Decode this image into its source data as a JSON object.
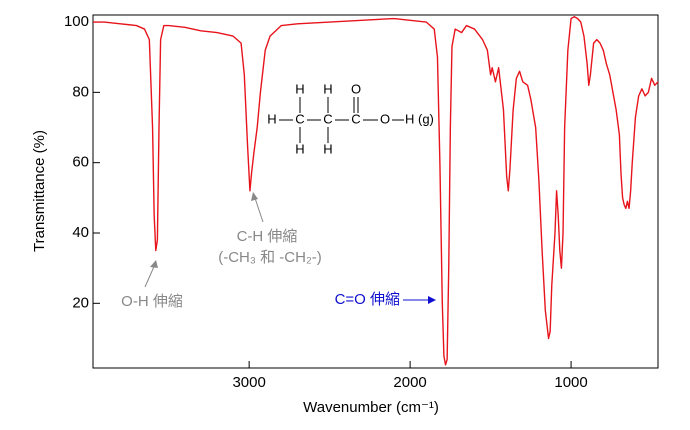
{
  "chart_data": {
    "type": "line",
    "xlabel": "Wavenumber (cm⁻¹)",
    "ylabel": "Transmittance (%)",
    "xlim": [
      3970,
      460
    ],
    "ylim": [
      1.6,
      102
    ],
    "xticks": [
      3000,
      2000,
      1000
    ],
    "yticks": [
      20,
      40,
      60,
      80,
      100
    ],
    "series": [
      {
        "color": "#e8141c",
        "x": [
          3970,
          3900,
          3800,
          3700,
          3650,
          3620,
          3600,
          3590,
          3580,
          3570,
          3560,
          3550,
          3530,
          3500,
          3400,
          3300,
          3200,
          3100,
          3050,
          3030,
          3010,
          2995,
          2985,
          2970,
          2950,
          2930,
          2900,
          2870,
          2800,
          2700,
          2500,
          2300,
          2100,
          2000,
          1900,
          1850,
          1830,
          1815,
          1800,
          1790,
          1780,
          1770,
          1760,
          1750,
          1740,
          1720,
          1680,
          1650,
          1600,
          1550,
          1520,
          1500,
          1490,
          1470,
          1450,
          1420,
          1400,
          1390,
          1380,
          1360,
          1340,
          1320,
          1300,
          1270,
          1250,
          1220,
          1200,
          1180,
          1160,
          1140,
          1130,
          1120,
          1100,
          1090,
          1080,
          1070,
          1060,
          1050,
          1040,
          1020,
          1000,
          980,
          960,
          940,
          920,
          900,
          890,
          880,
          860,
          840,
          820,
          800,
          780,
          760,
          740,
          720,
          700,
          690,
          680,
          670,
          660,
          650,
          640,
          630,
          620,
          600,
          580,
          560,
          540,
          520,
          500,
          480,
          460
        ],
        "y": [
          100,
          100,
          99.5,
          99,
          98,
          95,
          70,
          45,
          35,
          38,
          70,
          95,
          99,
          99,
          98.5,
          97.5,
          97,
          96,
          94,
          85,
          65,
          52,
          57,
          63,
          70,
          80,
          92,
          96,
          99,
          99.5,
          100,
          100.5,
          101,
          100.5,
          100,
          98,
          90,
          60,
          20,
          5,
          2.5,
          4,
          30,
          70,
          93,
          98,
          97,
          99,
          98,
          95,
          92,
          85,
          87,
          83,
          87,
          75,
          56,
          52,
          58,
          75,
          84,
          86,
          83,
          82,
          78,
          70,
          55,
          35,
          18,
          10,
          12,
          25,
          40,
          52,
          45,
          35,
          30,
          40,
          70,
          92,
          101,
          101.5,
          101,
          100,
          96,
          88,
          82,
          85,
          94,
          95,
          94,
          92,
          88,
          85,
          80,
          75,
          68,
          57,
          50,
          48,
          47,
          49,
          47,
          52,
          60,
          73,
          79,
          81,
          79,
          80,
          84,
          82,
          83
        ]
      }
    ],
    "annotations": [
      "O-H 伸縮",
      "C-H 伸縮",
      "(-CH₃ 和 -CH₂-)",
      "C=O 伸縮"
    ],
    "molecule": [
      "H",
      "C",
      "C",
      "C",
      "O",
      "H (g)",
      "H",
      "H",
      "O",
      "H",
      "H"
    ]
  }
}
